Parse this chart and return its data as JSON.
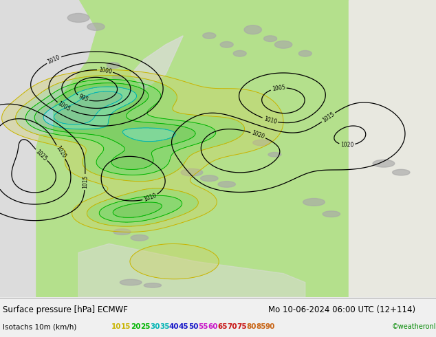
{
  "title_left": "Surface pressure [hPa] ECMWF",
  "title_right": "Mo 10-06-2024 06:00 UTC (12+114)",
  "legend_label": "Isotachs 10m (km/h)",
  "copyright": "©weatheronline.co.uk",
  "isotach_values": [
    10,
    15,
    20,
    25,
    30,
    35,
    40,
    45,
    50,
    55,
    60,
    65,
    70,
    75,
    80,
    85,
    90
  ],
  "isotach_colors": [
    "#c8b400",
    "#c8b400",
    "#00b400",
    "#00b400",
    "#00b4b4",
    "#00b4b4",
    "#1414c8",
    "#1414c8",
    "#1414c8",
    "#c814c8",
    "#c814c8",
    "#c81414",
    "#c81414",
    "#c81414",
    "#c86414",
    "#c86414",
    "#c86414"
  ],
  "bottom_bar_color": "#f0f0f0",
  "title_fontsize": 8.5,
  "legend_fontsize": 7.5,
  "fig_width": 6.34,
  "fig_height": 4.9,
  "map_bg_green": "#b4e08c",
  "map_bg_sea": "#dcdcdc",
  "map_bg_light": "#e8e8e0"
}
